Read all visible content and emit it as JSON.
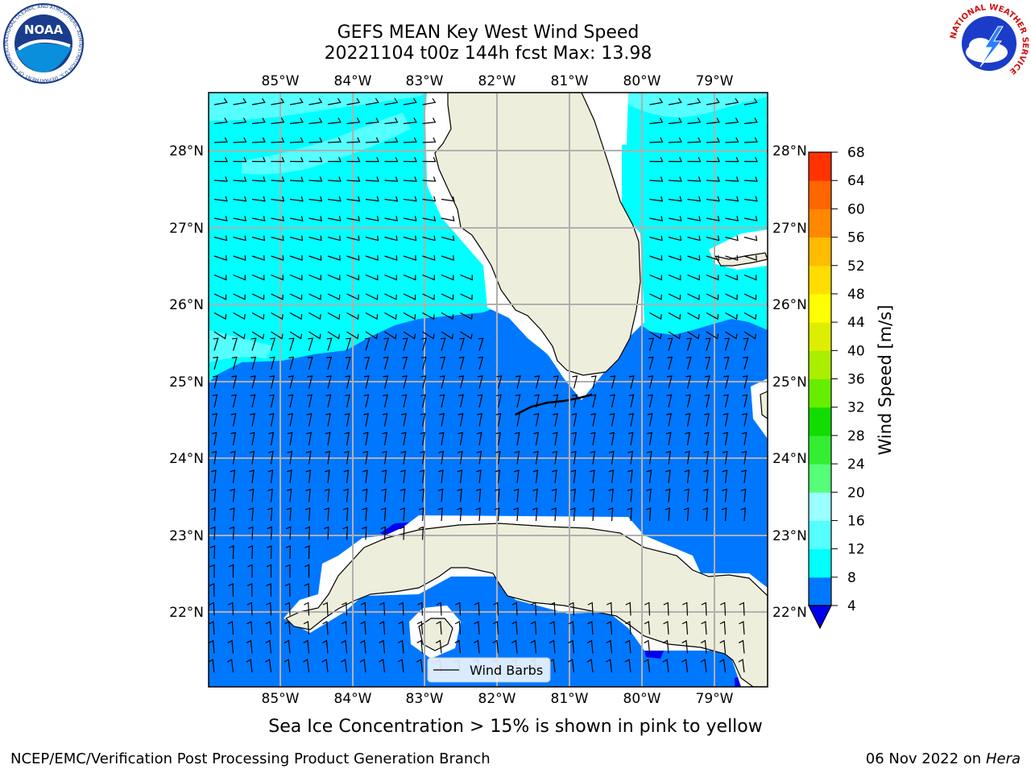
{
  "title": {
    "line1": "GEFS MEAN Key West Wind Speed",
    "line2": "20221104 t00z 144h fcst   Max: 13.98"
  },
  "logos": {
    "left": {
      "icon": "noaa-logo",
      "text": "NOAA",
      "ring": "NATIONAL OCEANIC AND ATMOSPHERIC ADMINISTRATION  U.S. DEPARTMENT OF COMMERCE"
    },
    "right": {
      "icon": "nws-logo",
      "ring": "NATIONAL WEATHER SERVICE"
    }
  },
  "map": {
    "lon_labels": [
      "85°W",
      "84°W",
      "83°W",
      "82°W",
      "81°W",
      "80°W",
      "79°W"
    ],
    "lat_labels": [
      "28°N",
      "27°N",
      "26°N",
      "25°N",
      "24°N",
      "23°N",
      "22°N"
    ],
    "legend_label": "Wind Barbs",
    "colors": {
      "land": "#eeeedc",
      "ws_4_8": "#0077ff",
      "ws_8_12": "#00ffff",
      "ws_12_16": "#55ffff",
      "ws_below_4": "#0000ee",
      "no_data": "#ffffff",
      "grid": "#b0b0b0"
    }
  },
  "colorbar": {
    "label": "Wind Speed [m/s]",
    "ticks": [
      "4",
      "8",
      "12",
      "16",
      "20",
      "24",
      "28",
      "32",
      "36",
      "40",
      "44",
      "48",
      "52",
      "56",
      "60",
      "64",
      "68"
    ],
    "colors": [
      "#0077ff",
      "#00ffff",
      "#55ffff",
      "#99ffff",
      "#55ff77",
      "#33ee33",
      "#11dd00",
      "#66ee00",
      "#aaee00",
      "#ddee00",
      "#ffff00",
      "#ffdd00",
      "#ffbb00",
      "#ff8800",
      "#ff6600",
      "#ff3300"
    ],
    "extend_color": "#0000ee"
  },
  "caption": "Sea Ice Concentration > 15% is shown in pink to yellow",
  "footer": {
    "left": "NCEP/EMC/Verification Post Processing Product Generation Branch",
    "date": "06 Nov 2022 on",
    "system": "Hera"
  }
}
